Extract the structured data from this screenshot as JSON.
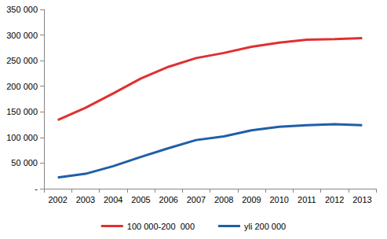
{
  "chart_data": {
    "type": "line",
    "categories": [
      "2002",
      "2003",
      "2004",
      "2005",
      "2006",
      "2007",
      "2008",
      "2009",
      "2010",
      "2011",
      "2012",
      "2013"
    ],
    "series": [
      {
        "name": "100 000-200  000",
        "color": "#e03030",
        "values": [
          134000,
          158000,
          186000,
          215000,
          238000,
          255000,
          265000,
          277000,
          285000,
          291000,
          292000,
          294000
        ]
      },
      {
        "name": "yli 200 000",
        "color": "#1f5fa8",
        "values": [
          22000,
          29000,
          44000,
          62000,
          79000,
          95000,
          102000,
          114000,
          121000,
          124000,
          126000,
          124000
        ]
      }
    ],
    "ylim": [
      0,
      350000
    ],
    "yticks": [
      {
        "value": 0,
        "label": "-"
      },
      {
        "value": 50000,
        "label": "50 000"
      },
      {
        "value": 100000,
        "label": "100 000"
      },
      {
        "value": 150000,
        "label": "150 000"
      },
      {
        "value": 200000,
        "label": "200 000"
      },
      {
        "value": 250000,
        "label": "250 000"
      },
      {
        "value": 300000,
        "label": "300 000"
      },
      {
        "value": 350000,
        "label": "350 000"
      }
    ],
    "grid": false,
    "legend": "bottom"
  }
}
